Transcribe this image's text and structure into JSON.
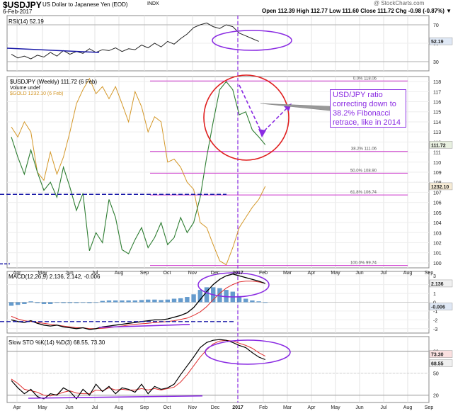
{
  "header": {
    "symbol": "$USDJPY",
    "description": "US Dollar to Japanese Yen (EOD)",
    "exchange": "INDX",
    "date": "6-Feb-2017",
    "quote": "Open 112.39  High 112.77  Low 111.60  Close 111.72  Chg -0.98 (-0.87%) ▼",
    "watermark": "@ StockCharts.com"
  },
  "colors": {
    "usdjpy": "#2e7d32",
    "gold": "#d4982a",
    "fib": "#cc33cc",
    "annotation": "#8a2be2",
    "circle_red": "#e02020",
    "blue_dashed": "#1a1aa8",
    "macd_line": "#000000",
    "signal_line": "#e03030",
    "histogram": "#4a8ac4",
    "sto_k": "#000000",
    "sto_d": "#e03030"
  },
  "chart_data": [
    {
      "type": "line",
      "panel": "rsi",
      "legend": "RSI(14) 52.19",
      "last_value_label": "52.19",
      "ylim": [
        20,
        80
      ],
      "yticks": [
        30,
        50,
        70
      ],
      "reference_lines": [
        30,
        70
      ],
      "series": [
        {
          "name": "RSI(14)",
          "values": [
            38,
            34,
            36,
            33,
            37,
            35,
            40,
            36,
            42,
            38,
            41,
            39,
            44,
            40,
            43,
            42,
            45,
            41,
            44,
            43,
            48,
            45,
            50,
            46,
            52,
            49,
            55,
            60,
            67,
            70,
            72,
            68,
            66,
            70,
            68,
            61,
            58,
            55,
            52
          ]
        }
      ]
    },
    {
      "type": "line",
      "panel": "price",
      "legend": [
        "$USDJPY (Weekly) 111.72 (6 Feb)",
        "Volume undef",
        "$GOLD 1232.10 (6 Feb)"
      ],
      "last_value_label": "111.72",
      "gold_last_label": "1232.10",
      "ylim": [
        99.5,
        118.5
      ],
      "yticks": [
        100,
        101,
        102,
        103,
        104,
        105,
        106,
        107,
        108,
        109,
        110,
        111,
        112,
        113,
        114,
        115,
        116,
        117,
        118
      ],
      "xlabels": [
        "Apr",
        "May",
        "Jun",
        "Jul",
        "Aug",
        "Sep",
        "Oct",
        "Nov",
        "Dec",
        "2017",
        "Feb",
        "Mar",
        "Apr",
        "May",
        "Jun",
        "Jul",
        "Aug",
        "Sep"
      ],
      "series": [
        {
          "name": "$USDJPY (Weekly)",
          "values": [
            112.5,
            110.5,
            108.8,
            111.2,
            109.0,
            107.2,
            108.0,
            106.5,
            109.5,
            107.5,
            105.2,
            106.9,
            101.2,
            103.0,
            102.0,
            106.3,
            104.5,
            101.3,
            100.9,
            102.3,
            103.5,
            101.5,
            102.5,
            104.0,
            101.8,
            102.5,
            104.5,
            103.0,
            104.0,
            106.5,
            110.5,
            114.0,
            117.2,
            118.0,
            117.2,
            114.7,
            115.0,
            113.2,
            112.5,
            111.72
          ]
        },
        {
          "name": "$GOLD",
          "values": [
            113.5,
            112.5,
            114.0,
            113.0,
            109.0,
            108.2,
            111.0,
            108.8,
            110.5,
            113.0,
            115.8,
            117.2,
            118.3,
            116.8,
            117.5,
            116.3,
            117.5,
            115.8,
            114.0,
            117.0,
            115.5,
            113.0,
            114.5,
            114.0,
            110.0,
            110.3,
            109.5,
            108.0,
            107.3,
            104.0,
            103.5,
            101.8,
            100.2,
            99.8,
            101.5,
            103.5,
            104.5,
            105.5,
            106.3,
            107.6
          ]
        }
      ],
      "fib_levels": [
        {
          "label": "0.0% 118.06",
          "value": 118.06
        },
        {
          "label": "38.2% 111.06",
          "value": 111.06
        },
        {
          "label": "50.0% 108.90",
          "value": 108.9
        },
        {
          "label": "61.8% 106.74",
          "value": 106.74
        },
        {
          "label": "100.0% 99.74",
          "value": 99.74
        }
      ],
      "annotation": "USD/JPY ratio correcting down to 38.2% Fibonacci retrace, like in 2014"
    },
    {
      "type": "line",
      "panel": "macd",
      "legend": "MACD(12,26,9) 2.136, 2.142, -0.006",
      "last_value_labels": [
        "2.136",
        "-0.006"
      ],
      "ylim": [
        -3.5,
        3.5
      ],
      "yticks": [
        -3,
        -2,
        -1,
        0,
        1,
        2,
        3
      ],
      "series": [
        {
          "name": "MACD(12,26,9)",
          "values": [
            -2.0,
            -2.2,
            -2.3,
            -2.1,
            -2.4,
            -2.6,
            -2.7,
            -2.6,
            -2.8,
            -2.9,
            -3.0,
            -2.9,
            -3.1,
            -3.0,
            -2.8,
            -2.7,
            -2.6,
            -2.5,
            -2.4,
            -2.3,
            -2.2,
            -2.1,
            -2.0,
            -2.0,
            -1.9,
            -1.7,
            -1.5,
            -1.2,
            -0.6,
            0.3,
            1.2,
            2.0,
            2.6,
            3.0,
            3.2,
            3.0,
            2.8,
            2.6,
            2.4,
            2.136
          ]
        },
        {
          "name": "Signal",
          "values": [
            -1.6,
            -1.9,
            -2.1,
            -2.2,
            -2.3,
            -2.4,
            -2.5,
            -2.6,
            -2.7,
            -2.8,
            -2.9,
            -2.9,
            -3.0,
            -3.0,
            -2.95,
            -2.9,
            -2.8,
            -2.7,
            -2.6,
            -2.5,
            -2.45,
            -2.4,
            -2.3,
            -2.25,
            -2.2,
            -2.1,
            -1.95,
            -1.8,
            -1.5,
            -1.1,
            -0.5,
            0.3,
            1.0,
            1.6,
            2.0,
            2.3,
            2.4,
            2.4,
            2.3,
            2.142
          ]
        },
        {
          "name": "Histogram",
          "values": [
            -0.4,
            -0.3,
            -0.2,
            0.1,
            -0.1,
            -0.2,
            -0.2,
            0.0,
            -0.1,
            -0.1,
            -0.1,
            0.0,
            -0.1,
            0.0,
            0.15,
            0.2,
            0.2,
            0.2,
            0.2,
            0.2,
            0.25,
            0.3,
            0.3,
            0.25,
            0.3,
            0.4,
            0.45,
            0.6,
            0.9,
            1.4,
            1.7,
            1.7,
            1.6,
            1.4,
            1.2,
            0.7,
            0.4,
            0.2,
            0.1,
            -0.006
          ]
        }
      ]
    },
    {
      "type": "line",
      "panel": "stochastic",
      "legend": "Slow STO %K(14) %D(3) 68.55, 73.30",
      "last_value_labels": [
        "73.30",
        "68.55"
      ],
      "ylim": [
        10,
        100
      ],
      "yticks": [
        20,
        50,
        80
      ],
      "reference_lines": [
        20,
        50,
        80
      ],
      "series": [
        {
          "name": "%K(14)",
          "values": [
            40,
            30,
            22,
            28,
            18,
            15,
            22,
            20,
            30,
            25,
            15,
            28,
            20,
            35,
            25,
            32,
            22,
            30,
            28,
            24,
            35,
            22,
            32,
            28,
            30,
            35,
            48,
            60,
            72,
            85,
            92,
            95,
            96,
            95,
            92,
            88,
            85,
            78,
            72,
            68.55
          ]
        },
        {
          "name": "%D(3)",
          "values": [
            42,
            36,
            28,
            26,
            24,
            20,
            19,
            21,
            24,
            26,
            23,
            22,
            22,
            27,
            26,
            30,
            27,
            28,
            27,
            27,
            29,
            27,
            29,
            27,
            29,
            31,
            38,
            48,
            60,
            72,
            82,
            90,
            94,
            95,
            94,
            91,
            88,
            84,
            78,
            73.3
          ]
        }
      ]
    }
  ]
}
